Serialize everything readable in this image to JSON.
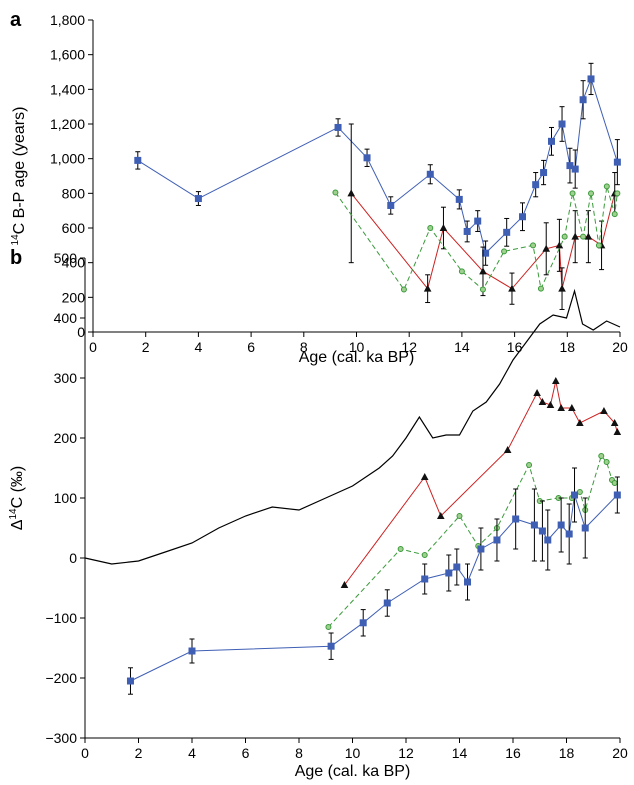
{
  "colors": {
    "blue": "#3f5fb5",
    "red": "#cc2222",
    "green": "#3a9a3a",
    "black": "#000000"
  },
  "chart_data": [
    {
      "panel": "a",
      "type": "line",
      "xlabel": "Age (cal. ka BP)",
      "ylabel_sup": "14",
      "ylabel_main": "C B-P age (years)",
      "xlim": [
        0,
        20
      ],
      "ylim": [
        0,
        1800
      ],
      "xticks": [
        "0",
        "2",
        "4",
        "6",
        "8",
        "10",
        "12",
        "14",
        "16",
        "18",
        "20"
      ],
      "yticks": [
        "0",
        "200",
        "400",
        "600",
        "800",
        "1,000",
        "1,200",
        "1,400",
        "1,600",
        "1,800"
      ],
      "series": [
        {
          "color": "blue",
          "marker": "square",
          "x": [
            1.7,
            4.0,
            9.3,
            10.4,
            11.3,
            12.8,
            13.9,
            14.2,
            14.6,
            14.9,
            15.7,
            16.3,
            16.8,
            17.1,
            17.4,
            17.8,
            18.1,
            18.3,
            18.6,
            18.9,
            19.9
          ],
          "y": [
            990,
            770,
            1180,
            1005,
            730,
            910,
            765,
            580,
            640,
            455,
            575,
            665,
            850,
            920,
            1100,
            1200,
            960,
            940,
            1340,
            1460,
            980
          ],
          "err": [
            50,
            40,
            50,
            50,
            50,
            55,
            55,
            60,
            60,
            70,
            80,
            80,
            70,
            70,
            80,
            100,
            100,
            110,
            110,
            90,
            130
          ]
        },
        {
          "color": "red",
          "marker": "triangle",
          "x": [
            9.8,
            12.7,
            13.3,
            14.8,
            15.9,
            17.2,
            17.7,
            17.8,
            18.3,
            18.8,
            19.3,
            19.8
          ],
          "y": [
            800,
            250,
            600,
            350,
            250,
            480,
            500,
            250,
            550,
            550,
            500,
            800
          ],
          "err": [
            400,
            80,
            120,
            140,
            90,
            150,
            150,
            120,
            150,
            150,
            140,
            120
          ]
        },
        {
          "color": "green",
          "marker": "circle",
          "dashed": true,
          "x": [
            9.2,
            11.8,
            12.8,
            14.0,
            14.8,
            15.6,
            16.7,
            17.0,
            17.9,
            18.2,
            18.6,
            18.9,
            19.2,
            19.5,
            19.8,
            19.9
          ],
          "y": [
            805,
            245,
            600,
            350,
            245,
            465,
            500,
            250,
            550,
            800,
            550,
            800,
            500,
            840,
            680,
            800
          ],
          "err": []
        }
      ]
    },
    {
      "panel": "b",
      "type": "line",
      "xlabel": "Age (cal. ka BP)",
      "ylabel_prefix": "Δ",
      "ylabel_sup": "14",
      "ylabel_main": "C (‰)",
      "xlim": [
        0,
        20
      ],
      "ylim": [
        -300,
        500
      ],
      "xticks": [
        "0",
        "2",
        "4",
        "6",
        "8",
        "10",
        "12",
        "14",
        "16",
        "18",
        "20"
      ],
      "yticks": [
        "−300",
        "−200",
        "−100",
        "0",
        "100",
        "200",
        "300",
        "400",
        "500"
      ],
      "series": [
        {
          "color": "black",
          "marker": "none",
          "name": "",
          "x": [
            0,
            1,
            2,
            3,
            4,
            5,
            6,
            7,
            8,
            9,
            10,
            11,
            11.5,
            12,
            12.5,
            13,
            13.5,
            14,
            14.5,
            15,
            15.5,
            16,
            16.5,
            17,
            17.5,
            18,
            18.3,
            18.6,
            19,
            19.5,
            20
          ],
          "y": [
            0,
            -10,
            -5,
            10,
            25,
            50,
            70,
            85,
            80,
            100,
            120,
            150,
            170,
            200,
            235,
            200,
            205,
            205,
            245,
            260,
            290,
            330,
            360,
            390,
            405,
            400,
            445,
            390,
            380,
            395,
            385
          ]
        },
        {
          "color": "red",
          "marker": "triangle",
          "x": [
            9.7,
            12.7,
            13.3,
            15.8,
            16.9,
            17.1,
            17.4,
            17.6,
            17.8,
            18.2,
            18.5,
            19.4,
            19.8,
            19.9
          ],
          "y": [
            -45,
            135,
            70,
            180,
            275,
            260,
            255,
            295,
            250,
            250,
            225,
            245,
            225,
            210
          ],
          "err": []
        },
        {
          "color": "green",
          "marker": "circle",
          "dashed": true,
          "x": [
            9.1,
            11.8,
            12.7,
            14.0,
            14.7,
            15.4,
            16.6,
            17.0,
            17.7,
            18.2,
            18.5,
            18.7,
            19.3,
            19.5,
            19.7,
            19.8
          ],
          "y": [
            -115,
            15,
            5,
            70,
            20,
            50,
            155,
            95,
            100,
            100,
            110,
            80,
            170,
            160,
            130,
            125
          ],
          "err": []
        },
        {
          "color": "blue",
          "marker": "square",
          "x": [
            1.7,
            4.0,
            9.2,
            10.4,
            11.3,
            12.7,
            13.6,
            13.9,
            14.3,
            14.8,
            15.4,
            16.1,
            16.8,
            17.1,
            17.3,
            17.8,
            18.1,
            18.3,
            18.7,
            19.9
          ],
          "y": [
            -205,
            -155,
            -147,
            -108,
            -75,
            -35,
            -25,
            -15,
            -40,
            15,
            30,
            65,
            55,
            45,
            30,
            55,
            40,
            105,
            50,
            105
          ],
          "err": [
            22,
            20,
            22,
            22,
            22,
            25,
            30,
            30,
            30,
            35,
            35,
            50,
            60,
            50,
            50,
            45,
            50,
            45,
            50,
            30
          ]
        }
      ]
    }
  ]
}
